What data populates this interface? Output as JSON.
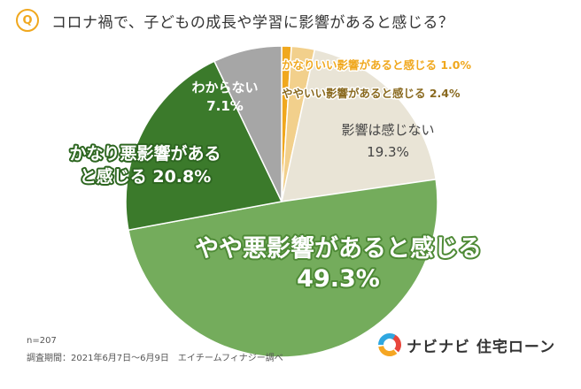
{
  "header": {
    "badge": "Q",
    "question": "コロナ禍で、子どもの成長や学習に影響があると感じる？"
  },
  "chart_data": {
    "type": "pie",
    "title": "コロナ禍で、子どもの成長や学習に影響があると感じる？",
    "slices": [
      {
        "label": "かなりいい影響があると感じる",
        "value": 1.0,
        "display": "かなりいい影響があると感じる 1.0%",
        "color": "#f0a81e"
      },
      {
        "label": "ややいい影響があると感じる",
        "value": 2.4,
        "display": "ややいい影響があると感じる 2.4%",
        "color": "#f2d08c"
      },
      {
        "label": "影響は感じない",
        "value": 19.3,
        "display": "影響は感じない\n19.3%",
        "color": "#e9e4d6"
      },
      {
        "label": "やや悪影響があると感じる",
        "value": 49.3,
        "display": "やや悪影響があると感じる\n49.3%",
        "color": "#74ac5c"
      },
      {
        "label": "かなり悪影響があると感じる",
        "value": 20.8,
        "display": "かなり悪影響がある\nと感じる 20.8%",
        "color": "#3b7a2b"
      },
      {
        "label": "わからない",
        "value": 7.1,
        "display": "わからない\n7.1%",
        "color": "#a6a6a6"
      }
    ]
  },
  "footer": {
    "n": "n=207",
    "survey": "調査期間：2021年6月7日～6月9日　エイチームフィナジー調べ"
  },
  "logo": {
    "text": "ナビナビ 住宅ローン",
    "colors": [
      "#e8463c",
      "#f5a623",
      "#2fa7e0"
    ]
  }
}
